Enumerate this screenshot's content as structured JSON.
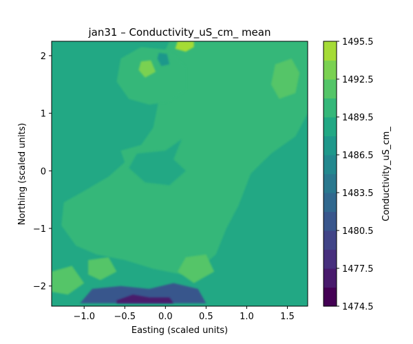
{
  "chart_data": {
    "type": "heatmap",
    "subtype": "filled-contour",
    "title": "jan31 – Conductivity_uS_cm_ mean",
    "xlabel": "Easting (scaled units)",
    "ylabel": "Northing (scaled units)",
    "xlim": [
      -1.4,
      1.75
    ],
    "ylim": [
      -2.35,
      2.25
    ],
    "xticks": [
      -1.0,
      -0.5,
      0.0,
      0.5,
      1.0,
      1.5
    ],
    "xtick_labels": [
      "−1.0",
      "−0.5",
      "0.0",
      "0.5",
      "1.0",
      "1.5"
    ],
    "yticks": [
      -2,
      -1,
      0,
      1,
      2
    ],
    "ytick_labels": [
      "−2",
      "−1",
      "0",
      "1",
      "2"
    ],
    "colorbar": {
      "label": "Conductivity_uS_cm_",
      "colormap": "viridis",
      "range": [
        1474.5,
        1495.5
      ],
      "levels": [
        1474.5,
        1476.0,
        1477.5,
        1479.0,
        1480.5,
        1482.0,
        1483.5,
        1485.0,
        1486.5,
        1488.0,
        1489.5,
        1491.0,
        1492.5,
        1494.0,
        1495.5
      ],
      "level_colors": [
        "#440154",
        "#481a6c",
        "#472f7d",
        "#414487",
        "#39568c",
        "#31688e",
        "#2a788e",
        "#23888e",
        "#1f988b",
        "#22a884",
        "#35b779",
        "#54c568",
        "#7ad151",
        "#a5db36",
        "#d2e21b",
        "#fde725"
      ],
      "ticks": [
        1474.5,
        1477.5,
        1480.5,
        1483.5,
        1486.5,
        1489.5,
        1492.5,
        1495.5
      ],
      "tick_labels": [
        "1474.5",
        "1477.5",
        "1480.5",
        "1483.5",
        "1486.5",
        "1489.5",
        "1492.5",
        "1495.5"
      ]
    },
    "background_value": 1488.7,
    "regions": [
      {
        "label": "east-light-zone",
        "value": 1490.0,
        "polygon": [
          [
            0.25,
            2.25
          ],
          [
            1.75,
            2.25
          ],
          [
            1.75,
            1.0
          ],
          [
            1.6,
            0.6
          ],
          [
            1.3,
            0.3
          ],
          [
            1.05,
            -0.05
          ],
          [
            0.9,
            -0.6
          ],
          [
            0.75,
            -1.0
          ],
          [
            0.62,
            -1.45
          ],
          [
            0.5,
            -1.6
          ],
          [
            0.2,
            -1.8
          ],
          [
            -0.15,
            -1.7
          ],
          [
            -0.5,
            -1.55
          ],
          [
            -0.85,
            -1.45
          ],
          [
            -1.1,
            -1.3
          ],
          [
            -1.28,
            -0.95
          ],
          [
            -1.25,
            -0.55
          ],
          [
            -1.0,
            -0.35
          ],
          [
            -0.7,
            -0.1
          ],
          [
            -0.5,
            0.15
          ],
          [
            -0.55,
            0.35
          ],
          [
            -0.3,
            0.45
          ],
          [
            -0.15,
            0.75
          ],
          [
            -0.1,
            1.1
          ],
          [
            -0.05,
            1.55
          ],
          [
            -0.05,
            1.95
          ],
          [
            0.05,
            2.25
          ]
        ]
      },
      {
        "label": "inner-dark-patch",
        "value": 1488.5,
        "polygon": [
          [
            -0.35,
            0.3
          ],
          [
            0.0,
            0.35
          ],
          [
            0.2,
            0.55
          ],
          [
            0.1,
            0.2
          ],
          [
            0.25,
            0.0
          ],
          [
            0.05,
            -0.25
          ],
          [
            -0.25,
            -0.2
          ],
          [
            -0.45,
            0.05
          ]
        ]
      },
      {
        "label": "north-light-lobe",
        "value": 1490.0,
        "polygon": [
          [
            -0.55,
            1.95
          ],
          [
            -0.3,
            2.15
          ],
          [
            0.05,
            2.1
          ],
          [
            0.25,
            1.8
          ],
          [
            0.25,
            1.4
          ],
          [
            0.05,
            1.2
          ],
          [
            -0.2,
            1.15
          ],
          [
            -0.45,
            1.25
          ],
          [
            -0.6,
            1.55
          ]
        ]
      },
      {
        "label": "northeast-high",
        "value": 1491.5,
        "polygon": [
          [
            1.35,
            1.85
          ],
          [
            1.55,
            1.95
          ],
          [
            1.65,
            1.7
          ],
          [
            1.6,
            1.35
          ],
          [
            1.4,
            1.25
          ],
          [
            1.3,
            1.5
          ]
        ]
      },
      {
        "label": "southwest-high",
        "value": 1491.2,
        "polygon": [
          [
            -1.4,
            -1.75
          ],
          [
            -1.15,
            -1.65
          ],
          [
            -1.0,
            -1.95
          ],
          [
            -1.2,
            -2.15
          ],
          [
            -1.4,
            -2.1
          ]
        ]
      },
      {
        "label": "south-high-1",
        "value": 1491.2,
        "polygon": [
          [
            -0.95,
            -1.55
          ],
          [
            -0.7,
            -1.5
          ],
          [
            -0.6,
            -1.75
          ],
          [
            -0.8,
            -1.9
          ],
          [
            -0.95,
            -1.8
          ]
        ]
      },
      {
        "label": "south-high-2",
        "value": 1491.2,
        "polygon": [
          [
            0.25,
            -1.5
          ],
          [
            0.5,
            -1.45
          ],
          [
            0.6,
            -1.75
          ],
          [
            0.35,
            -1.95
          ],
          [
            0.15,
            -1.75
          ]
        ]
      },
      {
        "label": "south-low-trough",
        "value": 1480.5,
        "polygon": [
          [
            -1.05,
            -2.3
          ],
          [
            -0.9,
            -2.05
          ],
          [
            -0.55,
            -2.0
          ],
          [
            -0.2,
            -2.05
          ],
          [
            0.1,
            -1.95
          ],
          [
            0.4,
            -2.05
          ],
          [
            0.5,
            -2.3
          ]
        ]
      },
      {
        "label": "south-low-core",
        "value": 1476.5,
        "polygon": [
          [
            -0.6,
            -2.25
          ],
          [
            -0.4,
            -2.15
          ],
          [
            -0.2,
            -2.2
          ],
          [
            0.05,
            -2.2
          ],
          [
            0.1,
            -2.3
          ],
          [
            -0.6,
            -2.3
          ]
        ]
      },
      {
        "label": "north-peak",
        "value": 1495.0,
        "polygon": [
          [
            0.15,
            2.25
          ],
          [
            0.35,
            2.25
          ],
          [
            0.35,
            2.15
          ],
          [
            0.25,
            2.07
          ],
          [
            0.12,
            2.12
          ]
        ]
      },
      {
        "label": "north-spot-high",
        "value": 1493.0,
        "polygon": [
          [
            -0.3,
            1.9
          ],
          [
            -0.18,
            1.92
          ],
          [
            -0.12,
            1.72
          ],
          [
            -0.25,
            1.62
          ],
          [
            -0.33,
            1.75
          ]
        ]
      },
      {
        "label": "north-spot-low",
        "value": 1486.5,
        "polygon": [
          [
            -0.08,
            2.05
          ],
          [
            0.02,
            2.03
          ],
          [
            0.05,
            1.85
          ],
          [
            -0.05,
            1.82
          ],
          [
            -0.1,
            1.95
          ]
        ]
      }
    ]
  }
}
